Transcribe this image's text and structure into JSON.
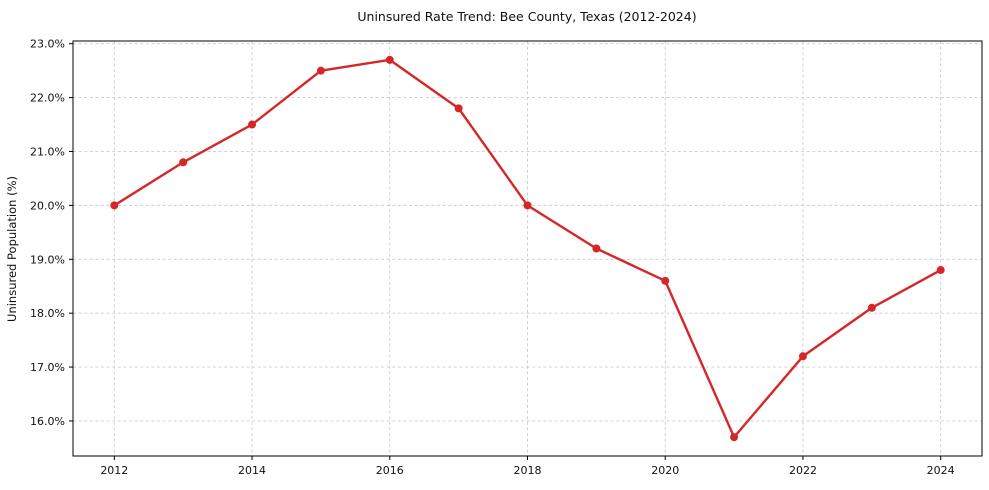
{
  "chart_data": {
    "type": "line",
    "title": "Uninsured Rate Trend: Bee County, Texas (2012-2024)",
    "ylabel": "Uninsured Population (%)",
    "xlabel": "",
    "x": [
      2012,
      2013,
      2014,
      2015,
      2016,
      2017,
      2018,
      2019,
      2020,
      2021,
      2022,
      2023,
      2024
    ],
    "values": [
      20.0,
      20.8,
      21.5,
      22.5,
      22.7,
      21.8,
      20.0,
      19.2,
      18.6,
      15.7,
      17.2,
      18.1,
      18.8
    ],
    "xlim": [
      2011.4,
      2024.6
    ],
    "ylim": [
      15.35,
      23.05
    ],
    "xticks": [
      2012,
      2014,
      2016,
      2018,
      2020,
      2022,
      2024
    ],
    "xtick_labels": [
      "2012",
      "2014",
      "2016",
      "2018",
      "2020",
      "2022",
      "2024"
    ],
    "yticks": [
      16,
      17,
      18,
      19,
      20,
      21,
      22,
      23
    ],
    "ytick_labels": [
      "16.0%",
      "17.0%",
      "18.0%",
      "19.0%",
      "20.0%",
      "21.0%",
      "22.0%",
      "23.0%"
    ],
    "grid": true,
    "legend": "none",
    "line_color": "#d62728",
    "marker": "circle",
    "marker_radius": 4,
    "grid_color": "#cccccc",
    "axis_color": "#000000",
    "background_color": "#ffffff"
  }
}
